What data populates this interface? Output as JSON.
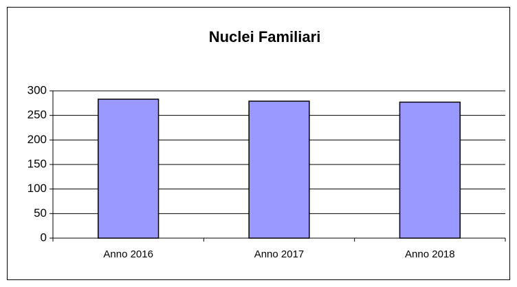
{
  "chart_data": {
    "type": "bar",
    "title": "Nuclei Familiari",
    "categories": [
      "Anno 2016",
      "Anno 2017",
      "Anno 2018"
    ],
    "values": [
      283,
      279,
      277
    ],
    "color": "#9999ff",
    "ylim": [
      0,
      300
    ],
    "yticks": [
      0,
      50,
      100,
      150,
      200,
      250,
      300
    ],
    "grid": true
  }
}
